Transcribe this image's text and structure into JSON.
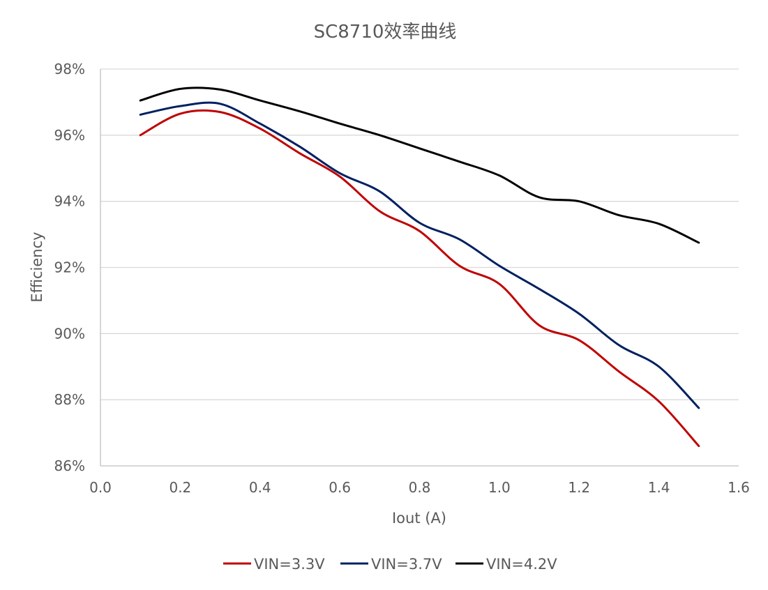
{
  "chart_data": {
    "type": "line",
    "title": "SC8710效率曲线",
    "xlabel": "Iout (A)",
    "ylabel": "Efficiency",
    "xlim": [
      0,
      1.6
    ],
    "ylim": [
      86,
      98
    ],
    "x_ticks": [
      "0.0",
      "0.2",
      "0.4",
      "0.6",
      "0.8",
      "1.0",
      "1.2",
      "1.4",
      "1.6"
    ],
    "x_tick_values": [
      0,
      0.2,
      0.4,
      0.6,
      0.8,
      1.0,
      1.2,
      1.4,
      1.6
    ],
    "y_ticks": [
      "86%",
      "88%",
      "90%",
      "92%",
      "94%",
      "96%",
      "98%"
    ],
    "y_tick_values": [
      86,
      88,
      90,
      92,
      94,
      96,
      98
    ],
    "grid": true,
    "legend_position": "bottom",
    "x": [
      0.1,
      0.2,
      0.3,
      0.4,
      0.5,
      0.6,
      0.7,
      0.8,
      0.9,
      1.0,
      1.1,
      1.2,
      1.3,
      1.4,
      1.5
    ],
    "series": [
      {
        "name": "VIN=3.3V",
        "color": "#c00000",
        "values": [
          96.0,
          96.65,
          96.7,
          96.2,
          95.45,
          94.75,
          93.7,
          93.1,
          92.05,
          91.5,
          90.25,
          89.8,
          88.85,
          87.95,
          86.6
        ]
      },
      {
        "name": "VIN=3.7V",
        "color": "#002060",
        "values": [
          96.62,
          96.88,
          96.95,
          96.35,
          95.65,
          94.85,
          94.3,
          93.35,
          92.85,
          92.05,
          91.35,
          90.6,
          89.65,
          89.0,
          87.75
        ]
      },
      {
        "name": "VIN=4.2V",
        "color": "#000000",
        "values": [
          97.05,
          97.4,
          97.38,
          97.05,
          96.72,
          96.35,
          96.0,
          95.6,
          95.2,
          94.78,
          94.12,
          94.0,
          93.58,
          93.32,
          92.75
        ]
      }
    ]
  }
}
